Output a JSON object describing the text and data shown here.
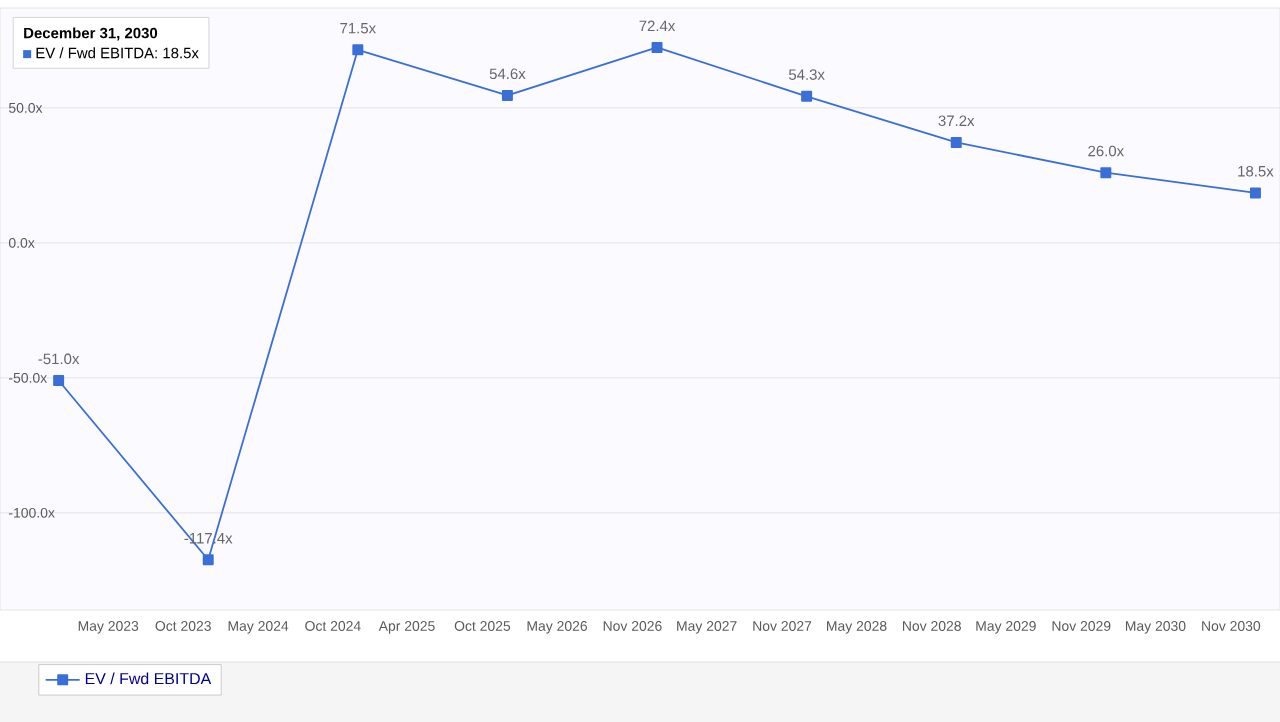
{
  "chart_data": {
    "type": "line",
    "x": [
      "2022-12-31",
      "2023-12-31",
      "2024-12-31",
      "2025-12-31",
      "2026-12-31",
      "2027-12-31",
      "2028-12-31",
      "2029-12-31",
      "2030-12-31"
    ],
    "series": [
      {
        "name": "EV / Fwd EBITDA",
        "color": "#3a6fd8",
        "values": [
          -51.0,
          -117.4,
          71.5,
          54.6,
          72.4,
          54.3,
          37.2,
          26.0,
          18.5
        ],
        "value_labels": [
          "-51.0x",
          "-117.4x",
          "71.5x",
          "54.6x",
          "72.4x",
          "54.3x",
          "37.2x",
          "26.0x",
          "18.5x"
        ]
      }
    ],
    "xlim": [
      "2022-08-10",
      "2031-03-01"
    ],
    "xticks": [
      {
        "value": "2023-05-01",
        "label": "May 2023"
      },
      {
        "value": "2023-10-31",
        "label": "Oct 2023"
      },
      {
        "value": "2024-05-01",
        "label": "May 2024"
      },
      {
        "value": "2024-10-31",
        "label": "Oct 2024"
      },
      {
        "value": "2025-04-30",
        "label": "Apr 2025"
      },
      {
        "value": "2025-10-31",
        "label": "Oct 2025"
      },
      {
        "value": "2026-05-01",
        "label": "May 2026"
      },
      {
        "value": "2026-11-01",
        "label": "Nov 2026"
      },
      {
        "value": "2027-05-01",
        "label": "May 2027"
      },
      {
        "value": "2027-11-01",
        "label": "Nov 2027"
      },
      {
        "value": "2028-05-01",
        "label": "May 2028"
      },
      {
        "value": "2028-11-01",
        "label": "Nov 2028"
      },
      {
        "value": "2029-05-01",
        "label": "May 2029"
      },
      {
        "value": "2029-11-01",
        "label": "Nov 2029"
      },
      {
        "value": "2030-05-01",
        "label": "May 2030"
      },
      {
        "value": "2030-11-01",
        "label": "Nov 2030"
      }
    ],
    "ylim": [
      -136,
      87
    ],
    "yticks": [
      {
        "value": 50,
        "label": "50.0x"
      },
      {
        "value": 0,
        "label": "0.0x"
      },
      {
        "value": -50,
        "label": "-50.0x"
      },
      {
        "value": -100,
        "label": "-100.0x"
      }
    ],
    "grid": "y",
    "marker": "square",
    "line_style": "solid",
    "legend": "bottom",
    "annotations": [
      "December 31, 2030",
      "EV / Fwd EBITDA: 18.5x"
    ]
  }
}
